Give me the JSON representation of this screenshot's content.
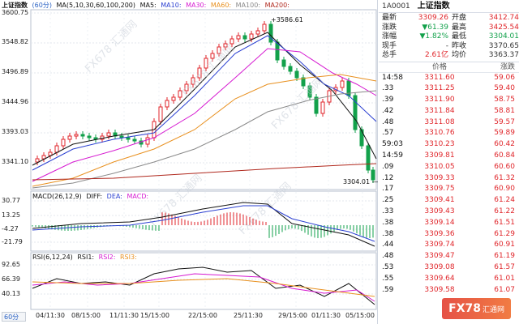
{
  "main_chart": {
    "symbol_title": "上证指数",
    "period_tag": "(60分)",
    "ma_legend": [
      "MA(5,10,30,60,100,200)",
      "MA5:",
      "MA10:",
      "MA30:",
      "MA60:",
      "MA100:",
      "MA200:"
    ],
    "y_ticks": [
      "3600.75",
      "3548.82",
      "3496.89",
      "3444.96",
      "3393.03",
      "3341.10"
    ],
    "high_annotation": "3586.61",
    "low_annotation": "3304.01",
    "watermarks": [
      "FX678 汇通网",
      "FX678 汇通网",
      "FX678 汇通网",
      "FX678 汇通网",
      "FX678 汇通网"
    ]
  },
  "macd_panel": {
    "legend": [
      "MACD(26,12,9)",
      "DIFF:",
      "DEA:",
      "MACD:"
    ],
    "y_ticks": [
      "30.77",
      "13.25",
      "-4.27",
      "-21.79"
    ]
  },
  "rsi_panel": {
    "legend": [
      "RSI(6,12,24)",
      "RSI1:",
      "RSI2:",
      "RSI3:"
    ],
    "y_ticks": [
      "92.65",
      "66.39",
      "40.13"
    ]
  },
  "x_axis": {
    "labels": [
      "04/11:30",
      "08/15:00",
      "11/11:30",
      "15/15:00",
      "22/15:00",
      "25/11:30",
      "29/15:00",
      "01/11:30",
      "05/15:00"
    ],
    "timeframe": "60分"
  },
  "colors": {
    "up": "#e0262b",
    "down": "#12a14b",
    "ma5": "#111111",
    "ma10": "#2a3fd1",
    "ma30": "#d61ad1",
    "ma60": "#e8901f",
    "ma100": "#8a8a8a",
    "ma200": "#b0281d"
  },
  "quote_panel": {
    "code": "1A0001",
    "name": "上证指数",
    "rows": [
      {
        "l1": "最新",
        "v1": "3309.26",
        "c1": "up",
        "l2": "开盘",
        "v2": "3412.74",
        "c2": "up"
      },
      {
        "l1": "涨跌",
        "v1": "▼61.39",
        "c1": "down",
        "l2": "最高",
        "v2": "3425.54",
        "c2": "up"
      },
      {
        "l1": "涨幅",
        "v1": "▼1.82%",
        "c1": "down",
        "l2": "最低",
        "v2": "3304.01",
        "c2": "down"
      },
      {
        "l1": "现手",
        "v1": "-",
        "c1": "neutral",
        "l2": "昨收",
        "v2": "3370.65",
        "c2": "neutral"
      },
      {
        "l1": "总手",
        "v1": "2.61亿",
        "c1": "up",
        "l2": "均价",
        "v2": "3363.37",
        "c2": "neutral"
      }
    ]
  },
  "trades": {
    "headers": [
      "",
      "价格",
      "涨跌"
    ],
    "rows": [
      {
        "t": "14:58",
        "p": "3311.60",
        "c": "59.06"
      },
      {
        "t": ".33",
        "p": "3311.25",
        "c": "59.40"
      },
      {
        "t": ".39",
        "p": "3311.90",
        "c": "58.75"
      },
      {
        "t": ".42",
        "p": "3311.84",
        "c": "58.81"
      },
      {
        "t": ".48",
        "p": "3311.08",
        "c": "59.57"
      },
      {
        "t": ".57",
        "p": "3310.76",
        "c": "59.89"
      },
      {
        "t": "59:03",
        "p": "3310.23",
        "c": "60.42"
      },
      {
        "t": "14:59",
        "p": "3309.81",
        "c": "60.84"
      },
      {
        "t": ".09",
        "p": "3310.05",
        "c": "60.60"
      },
      {
        "t": ".12",
        "p": "3309.33",
        "c": "61.32"
      },
      {
        "t": ".17",
        "p": "3309.75",
        "c": "60.90"
      },
      {
        "t": ".25",
        "p": "3309.41",
        "c": "61.24"
      },
      {
        "t": ".33",
        "p": "3309.43",
        "c": "61.22"
      },
      {
        "t": ".38",
        "p": "3309.14",
        "c": "61.51"
      },
      {
        "t": ".38",
        "p": "3309.36",
        "c": "61.29"
      },
      {
        "t": ".44",
        "p": "3309.74",
        "c": "60.91"
      },
      {
        "t": ".48",
        "p": "3309.47",
        "c": "61.19"
      },
      {
        "t": ".53",
        "p": "3309.08",
        "c": "61.57"
      },
      {
        "t": ".55",
        "p": "3309.64",
        "c": "61.01"
      },
      {
        "t": ".59",
        "p": "3309.58",
        "c": "61.07"
      }
    ]
  },
  "brand_badge": {
    "text": "FX78",
    "sub": "汇通网"
  }
}
